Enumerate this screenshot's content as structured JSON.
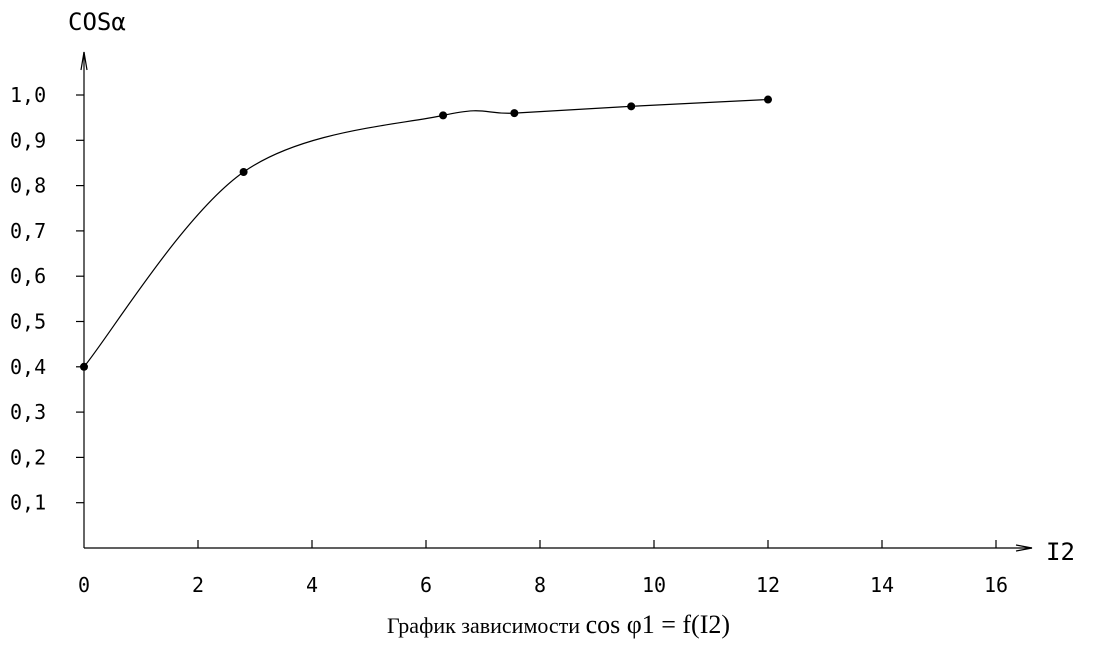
{
  "chart_data": {
    "type": "line",
    "ylabel": "COSα",
    "xlabel": "I2",
    "xlim": [
      0,
      16
    ],
    "ylim": [
      0,
      1.0
    ],
    "x_ticks": [
      0,
      2,
      4,
      6,
      8,
      10,
      12,
      14,
      16
    ],
    "x_tick_labels": [
      "0",
      "2",
      "4",
      "6",
      "8",
      "10",
      "12",
      "14",
      "16"
    ],
    "y_ticks": [
      0.1,
      0.2,
      0.3,
      0.4,
      0.5,
      0.6,
      0.7,
      0.8,
      0.9,
      1.0
    ],
    "y_tick_labels": [
      "0,1",
      "0,2",
      "0,3",
      "0,4",
      "0,5",
      "0,6",
      "0,7",
      "0,8",
      "0,9",
      "1,0"
    ],
    "grid": false,
    "series": [
      {
        "x": [
          0,
          2.8,
          6.3,
          7.55,
          9.6,
          12.0
        ],
        "y": [
          0.4,
          0.83,
          0.955,
          0.96,
          0.975,
          0.99
        ]
      }
    ]
  },
  "caption": {
    "text": "График зависимости",
    "formula": "cos φ1 = f(I2)"
  }
}
